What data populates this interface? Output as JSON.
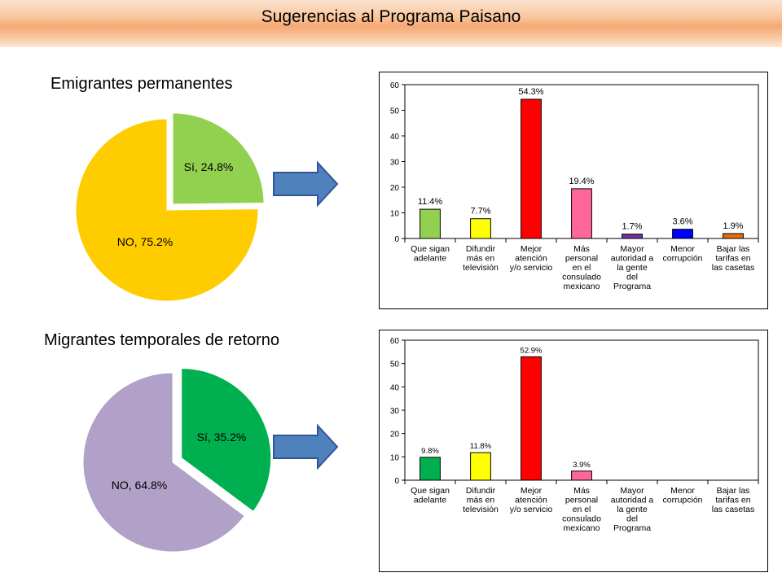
{
  "header": {
    "title": "Sugerencias al Programa Paisano"
  },
  "sections": [
    {
      "title": "Emigrantes permanentes"
    },
    {
      "title": "Migrantes temporales de retorno"
    }
  ],
  "chart_data": [
    {
      "type": "pie",
      "section": "Emigrantes permanentes",
      "slices": [
        {
          "label": "Sí, 24.8%",
          "value": 24.8,
          "color": "#92d050",
          "exploded": true
        },
        {
          "label": "NO, 75.2%",
          "value": 75.2,
          "color": "#ffcc00",
          "exploded": false
        }
      ]
    },
    {
      "type": "bar",
      "section": "Emigrantes permanentes",
      "categories": [
        [
          "Que sigan",
          "adelante"
        ],
        [
          "Difundir",
          "más en",
          "televisión"
        ],
        [
          "Mejor",
          "atención",
          "y/o servicio"
        ],
        [
          "Más",
          "personal",
          "en el",
          "consulado",
          "mexicano"
        ],
        [
          "Mayor",
          "autoridad a",
          "la gente",
          "del",
          "Programa"
        ],
        [
          "Menor",
          "corrupción"
        ],
        [
          "Bajar las",
          "tarifas en",
          "las casetas"
        ]
      ],
      "values": [
        11.4,
        7.7,
        54.3,
        19.4,
        1.7,
        3.6,
        1.9
      ],
      "data_labels": [
        "11.4%",
        "7.7%",
        "54.3%",
        "19.4%",
        "1.7%",
        "3.6%",
        "1.9%"
      ],
      "colors": [
        "#92d050",
        "#ffff00",
        "#ff0000",
        "#ff6699",
        "#7030a0",
        "#0000ff",
        "#e46c0a"
      ],
      "ylim": [
        0,
        60
      ],
      "yticks": [
        0,
        10,
        20,
        30,
        40,
        50,
        60
      ],
      "grid": false
    },
    {
      "type": "pie",
      "section": "Migrantes temporales de retorno",
      "slices": [
        {
          "label": "Sí, 35.2%",
          "value": 35.2,
          "color": "#00b050",
          "exploded": true
        },
        {
          "label": "NO, 64.8%",
          "value": 64.8,
          "color": "#b1a0c7",
          "exploded": false
        }
      ]
    },
    {
      "type": "bar",
      "section": "Migrantes temporales de retorno",
      "categories": [
        [
          "Que sigan",
          "adelante"
        ],
        [
          "Difundir",
          "más en",
          "televisión"
        ],
        [
          "Mejor",
          "atención",
          "y/o servicio"
        ],
        [
          "Más",
          "personal",
          "en el",
          "consulado",
          "mexicano"
        ],
        [
          "Mayor",
          "autoridad a",
          "la gente",
          "del",
          "Programa"
        ],
        [
          "Menor",
          "corrupción"
        ],
        [
          "Bajar las",
          "tarifas en",
          "las casetas"
        ]
      ],
      "values": [
        9.8,
        11.8,
        52.9,
        3.9,
        0,
        0,
        0
      ],
      "data_labels": [
        "9.8%",
        "11.8%",
        "52.9%",
        "3.9%",
        "",
        "",
        ""
      ],
      "colors": [
        "#00b050",
        "#ffff00",
        "#ff0000",
        "#ff6699",
        "#7030a0",
        "#0000ff",
        "#e46c0a"
      ],
      "ylim": [
        0,
        60
      ],
      "yticks": [
        0,
        10,
        20,
        30,
        40,
        50,
        60
      ],
      "grid": false
    }
  ]
}
